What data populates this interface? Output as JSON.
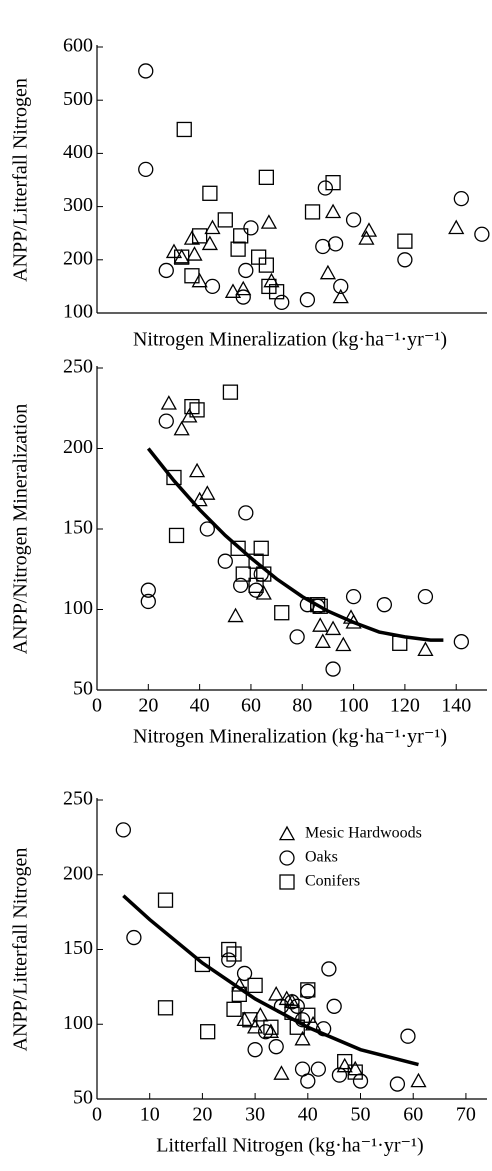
{
  "chart_data": [
    {
      "type": "scatter",
      "ylabel": "ANPP/Litterfall Nitrogen",
      "xlabel": "Nitrogen Mineralization (kg·ha⁻¹·yr⁻¹)",
      "xlim": [
        0,
        152
      ],
      "ylim": [
        100,
        600
      ],
      "yticks": [
        100,
        200,
        300,
        400,
        500,
        600
      ],
      "series": [
        {
          "marker": "triangle",
          "color": "#000000",
          "x": [
            30,
            33,
            37,
            38,
            40,
            45,
            44,
            53,
            57,
            67,
            68,
            90,
            92,
            95,
            105,
            106,
            140
          ],
          "values": [
            215,
            205,
            240,
            210,
            160,
            260,
            230,
            140,
            145,
            270,
            160,
            175,
            290,
            130,
            240,
            255,
            260
          ]
        },
        {
          "marker": "circle",
          "color": "#000000",
          "x": [
            19,
            19,
            27,
            45,
            58,
            57,
            60,
            72,
            82,
            88,
            89,
            93,
            95,
            100,
            120,
            142,
            150
          ],
          "values": [
            555,
            370,
            180,
            150,
            180,
            130,
            260,
            120,
            125,
            225,
            335,
            230,
            150,
            275,
            200,
            315,
            248
          ]
        },
        {
          "marker": "square",
          "color": "#000000",
          "x": [
            33,
            34,
            37,
            40,
            44,
            50,
            55,
            56,
            63,
            66,
            66,
            67,
            70,
            84,
            92,
            120
          ],
          "values": [
            205,
            445,
            170,
            245,
            325,
            275,
            220,
            245,
            205,
            190,
            355,
            150,
            140,
            290,
            345,
            235
          ]
        }
      ]
    },
    {
      "type": "scatter",
      "ylabel": "ANPP/Nitrogen Mineralization",
      "xlabel": "Nitrogen Mineralization (kg·ha⁻¹·yr⁻¹)",
      "xlim": [
        0,
        152
      ],
      "ylim": [
        50,
        250
      ],
      "xticks": [
        0,
        20,
        40,
        60,
        80,
        100,
        120,
        140
      ],
      "yticks": [
        50,
        100,
        150,
        200,
        250
      ],
      "series": [
        {
          "marker": "triangle",
          "color": "#000000",
          "x": [
            28,
            33,
            36,
            39,
            40,
            43,
            54,
            65,
            87,
            88,
            92,
            96,
            99,
            100,
            128
          ],
          "values": [
            228,
            212,
            220,
            186,
            168,
            172,
            96,
            110,
            90,
            80,
            88,
            78,
            95,
            92,
            75
          ]
        },
        {
          "marker": "circle",
          "color": "#000000",
          "x": [
            20,
            20,
            27,
            43,
            50,
            56,
            58,
            62,
            64,
            78,
            82,
            86,
            92,
            100,
            112,
            128,
            142
          ],
          "values": [
            112,
            105,
            217,
            150,
            130,
            115,
            160,
            112,
            122,
            83,
            103,
            102,
            63,
            108,
            103,
            108,
            80
          ]
        },
        {
          "marker": "square",
          "color": "#000000",
          "x": [
            30,
            31,
            37,
            39,
            52,
            55,
            57,
            62,
            62,
            64,
            65,
            72,
            86,
            87,
            118
          ],
          "values": [
            182,
            146,
            226,
            224,
            235,
            138,
            122,
            130,
            115,
            138,
            122,
            98,
            103,
            102,
            79
          ]
        }
      ],
      "curve": {
        "x": [
          20,
          30,
          40,
          50,
          60,
          70,
          80,
          90,
          100,
          110,
          120,
          130,
          135
        ],
        "y": [
          200,
          180,
          162,
          146,
          132,
          119,
          108,
          99,
          92,
          86,
          83,
          81,
          81
        ]
      }
    },
    {
      "type": "scatter",
      "ylabel": "ANPP/Litterfall Nitrogen",
      "xlabel": "Litterfall Nitrogen (kg·ha⁻¹·yr⁻¹)",
      "xlim": [
        0,
        74
      ],
      "ylim": [
        50,
        250
      ],
      "xticks": [
        0,
        10,
        20,
        30,
        40,
        50,
        60,
        70
      ],
      "yticks": [
        50,
        100,
        150,
        200,
        250
      ],
      "legend": "upper right",
      "series": [
        {
          "name": "Mesic Hardwoods",
          "marker": "triangle",
          "color": "#000000",
          "x": [
            27,
            28,
            30,
            31,
            33,
            34,
            35,
            36,
            37,
            39,
            41,
            47,
            49,
            61
          ],
          "values": [
            126,
            103,
            98,
            106,
            95,
            120,
            67,
            117,
            115,
            90,
            100,
            72,
            70,
            62
          ]
        },
        {
          "name": "Oaks",
          "marker": "circle",
          "color": "#000000",
          "x": [
            5,
            7,
            25,
            28,
            30,
            32,
            34,
            35,
            37,
            38,
            39,
            39,
            40,
            40,
            42,
            43,
            44,
            45,
            46,
            50,
            57,
            59
          ],
          "values": [
            230,
            158,
            143,
            134,
            83,
            95,
            85,
            112,
            115,
            112,
            103,
            70,
            62,
            122,
            70,
            97,
            137,
            112,
            66,
            62,
            60,
            92
          ]
        },
        {
          "name": "Conifers",
          "marker": "square",
          "color": "#000000",
          "x": [
            13,
            13,
            20,
            21,
            25,
            26,
            26,
            27,
            29,
            30,
            33,
            37,
            38,
            40,
            40,
            47,
            49
          ],
          "values": [
            111,
            183,
            140,
            95,
            150,
            110,
            147,
            120,
            103,
            126,
            98,
            108,
            98,
            123,
            106,
            75,
            68
          ]
        }
      ],
      "curve": {
        "x": [
          5,
          10,
          20,
          30,
          40,
          50,
          61
        ],
        "y": [
          186,
          170,
          141,
          117,
          98,
          83,
          73
        ]
      }
    }
  ]
}
